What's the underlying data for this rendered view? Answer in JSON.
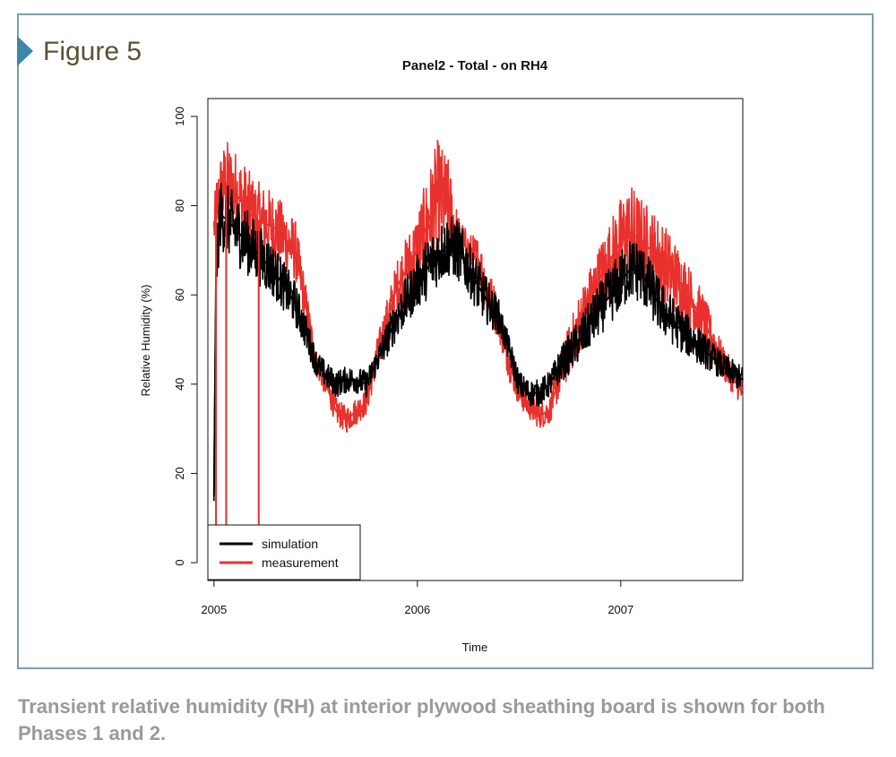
{
  "figure_label": "Figure 5",
  "caption": "Transient relative humidity (RH) at interior plywood sheathing board is shown for both Phases 1 and 2.",
  "colors": {
    "frame": "#7f9cad",
    "marker": "#3f87a8",
    "simulation": "#000000",
    "measurement": "#e8312c"
  },
  "chart_data": {
    "type": "line",
    "title": "Panel2 - Total - on RH4",
    "xlabel": "Time",
    "ylabel": "Relative Humidity (%)",
    "xlim": [
      2004.97,
      2007.6
    ],
    "ylim": [
      -4,
      104
    ],
    "x_ticks": [
      2005,
      2006,
      2007
    ],
    "x_tick_labels": [
      "2005",
      "2006",
      "2007"
    ],
    "y_ticks": [
      0,
      20,
      40,
      60,
      80,
      100
    ],
    "y_tick_labels": [
      "0",
      "20",
      "40",
      "60",
      "80",
      "100"
    ],
    "grid": false,
    "legend": {
      "position": "bottom-left",
      "entries": [
        "simulation",
        "measurement"
      ]
    },
    "series": [
      {
        "name": "simulation",
        "color": "#000000",
        "x": [
          2005.0,
          2005.01,
          2005.03,
          2005.06,
          2005.1,
          2005.2,
          2005.3,
          2005.4,
          2005.45,
          2005.5,
          2005.55,
          2005.6,
          2005.65,
          2005.7,
          2005.75,
          2005.8,
          2005.9,
          2006.0,
          2006.05,
          2006.1,
          2006.15,
          2006.2,
          2006.25,
          2006.3,
          2006.35,
          2006.4,
          2006.45,
          2006.5,
          2006.55,
          2006.6,
          2006.65,
          2006.7,
          2006.8,
          2006.9,
          2007.0,
          2007.05,
          2007.1,
          2007.2,
          2007.3,
          2007.4,
          2007.5,
          2007.6
        ],
        "y": [
          15,
          65,
          78,
          77,
          75,
          70,
          65,
          58,
          52,
          45,
          42,
          40,
          41,
          41,
          40,
          45,
          55,
          63,
          66,
          69,
          71,
          70,
          66,
          62,
          58,
          55,
          48,
          40,
          38,
          38,
          40,
          44,
          50,
          57,
          63,
          66,
          65,
          57,
          52,
          48,
          44,
          41
        ],
        "band": [
          3,
          6,
          8,
          8,
          8,
          7,
          6,
          5,
          4,
          3,
          3,
          3,
          3,
          3,
          3,
          3,
          5,
          6,
          7,
          7,
          7,
          7,
          6,
          6,
          5,
          4,
          3,
          3,
          3,
          3,
          3,
          4,
          5,
          6,
          7,
          7,
          7,
          6,
          5,
          4,
          3,
          3
        ]
      },
      {
        "name": "measurement",
        "color": "#e8312c",
        "x": [
          2005.0,
          2005.01,
          2005.03,
          2005.06,
          2005.1,
          2005.2,
          2005.3,
          2005.4,
          2005.45,
          2005.5,
          2005.55,
          2005.6,
          2005.65,
          2005.7,
          2005.75,
          2005.8,
          2005.9,
          2006.0,
          2006.05,
          2006.1,
          2006.15,
          2006.2,
          2006.25,
          2006.3,
          2006.35,
          2006.4,
          2006.45,
          2006.5,
          2006.55,
          2006.6,
          2006.65,
          2006.7,
          2006.8,
          2006.9,
          2007.0,
          2007.05,
          2007.1,
          2007.2,
          2007.3,
          2007.4,
          2007.5,
          2007.6
        ],
        "y": [
          75,
          78,
          82,
          85,
          83,
          77,
          75,
          70,
          58,
          45,
          40,
          34,
          32,
          34,
          36,
          46,
          62,
          70,
          76,
          82,
          80,
          73,
          70,
          68,
          60,
          55,
          45,
          38,
          35,
          33,
          34,
          42,
          54,
          64,
          72,
          74,
          72,
          68,
          62,
          55,
          45,
          38
        ],
        "band": [
          5,
          8,
          10,
          10,
          10,
          9,
          8,
          7,
          5,
          3,
          3,
          3,
          3,
          3,
          3,
          4,
          6,
          9,
          11,
          13,
          11,
          5,
          4,
          5,
          6,
          5,
          4,
          3,
          3,
          3,
          3,
          5,
          7,
          8,
          10,
          11,
          10,
          9,
          8,
          6,
          4,
          3
        ]
      }
    ],
    "annotations": [
      {
        "series": "measurement",
        "type": "dropout",
        "x": 2005.01,
        "y": -4
      },
      {
        "series": "measurement",
        "type": "dropout",
        "x": 2005.06,
        "y": -4
      },
      {
        "series": "measurement",
        "type": "dropout",
        "x": 2005.22,
        "y": -4
      }
    ]
  }
}
